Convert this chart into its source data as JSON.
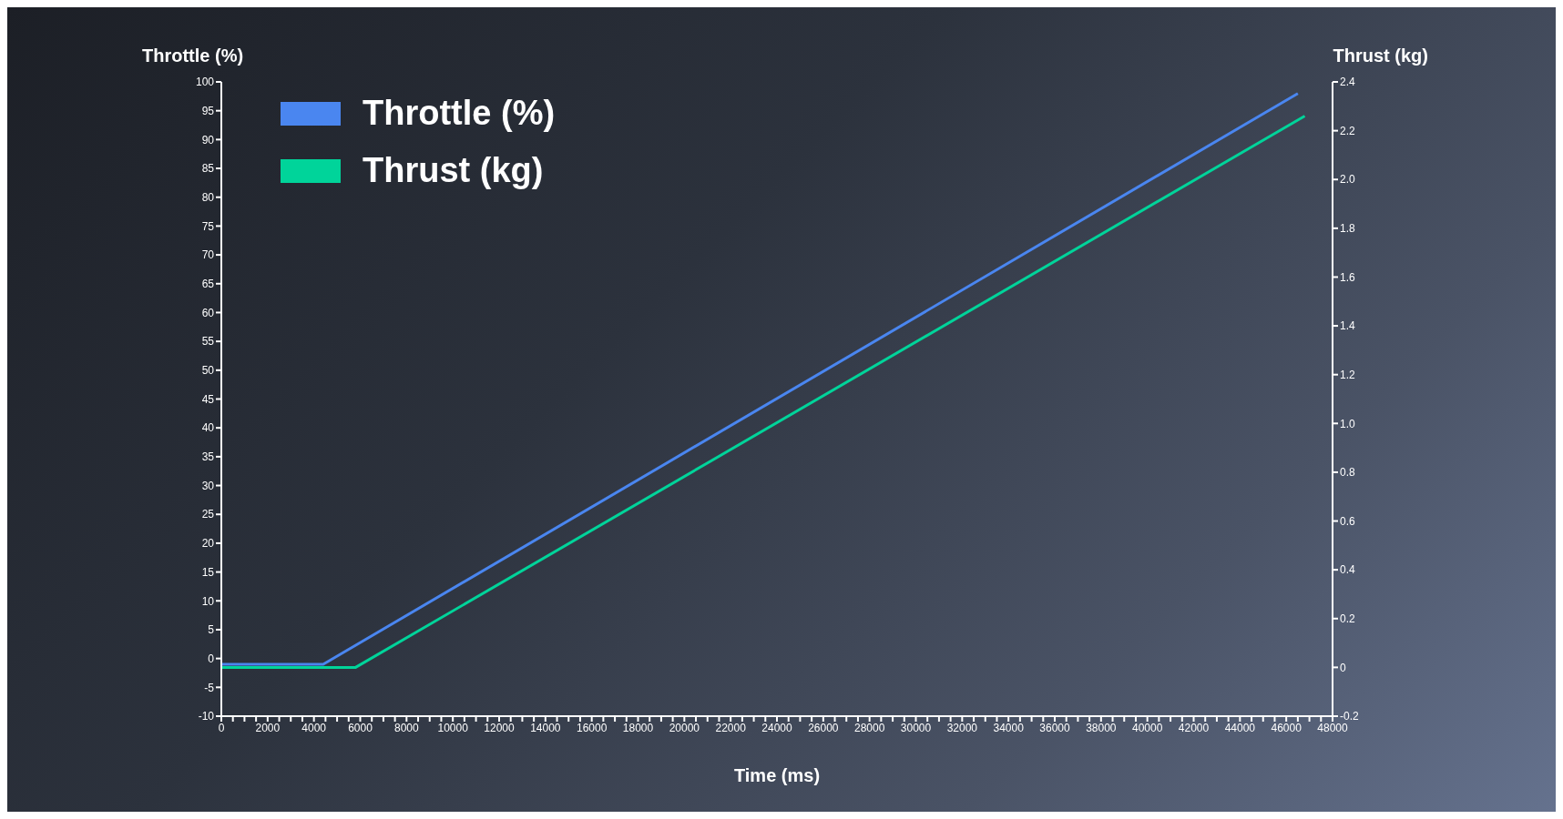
{
  "chart_data": {
    "type": "line",
    "xlabel": "Time (ms)",
    "ylabel": "Throttle (%)",
    "y2label": "Thrust (kg)",
    "series": [
      {
        "name": "Throttle (%)",
        "color": "#4a86f0",
        "x": [
          0,
          4400,
          46500
        ],
        "values": [
          -1,
          -1,
          98
        ]
      },
      {
        "name": "Thrust (kg)",
        "color": "#00d49a",
        "axis": "y2",
        "x": [
          0,
          5800,
          46800
        ],
        "values": [
          0,
          0,
          2.26
        ]
      }
    ],
    "xlim": [
      0,
      48000
    ],
    "xticks": [
      0,
      {
        "value": 500,
        "label": null
      },
      {
        "value": 1000,
        "label": null
      },
      {
        "value": 1500,
        "label": null
      },
      2000,
      {
        "value": 2500,
        "label": null
      },
      {
        "value": 3000,
        "label": null
      },
      {
        "value": 3500,
        "label": null
      },
      4000,
      {
        "value": 4500,
        "label": null
      },
      {
        "value": 5000,
        "label": null
      },
      {
        "value": 5500,
        "label": null
      },
      6000,
      {
        "value": 6500,
        "label": null
      },
      {
        "value": 7000,
        "label": null
      },
      {
        "value": 7500,
        "label": null
      },
      8000,
      {
        "value": 8500,
        "label": null
      },
      {
        "value": 9000,
        "label": null
      },
      {
        "value": 9500,
        "label": null
      },
      10000,
      {
        "value": 10500,
        "label": null
      },
      {
        "value": 11000,
        "label": null
      },
      {
        "value": 11500,
        "label": null
      },
      12000,
      {
        "value": 12500,
        "label": null
      },
      {
        "value": 13000,
        "label": null
      },
      {
        "value": 13500,
        "label": null
      },
      14000,
      {
        "value": 14500,
        "label": null
      },
      {
        "value": 15000,
        "label": null
      },
      {
        "value": 15500,
        "label": null
      },
      16000,
      {
        "value": 16500,
        "label": null
      },
      {
        "value": 17000,
        "label": null
      },
      {
        "value": 17500,
        "label": null
      },
      18000,
      {
        "value": 18500,
        "label": null
      },
      {
        "value": 19000,
        "label": null
      },
      {
        "value": 19500,
        "label": null
      },
      20000,
      {
        "value": 20500,
        "label": null
      },
      {
        "value": 21000,
        "label": null
      },
      {
        "value": 21500,
        "label": null
      },
      22000,
      {
        "value": 22500,
        "label": null
      },
      {
        "value": 23000,
        "label": null
      },
      {
        "value": 23500,
        "label": null
      },
      24000,
      {
        "value": 24500,
        "label": null
      },
      {
        "value": 25000,
        "label": null
      },
      {
        "value": 25500,
        "label": null
      },
      26000,
      {
        "value": 26500,
        "label": null
      },
      {
        "value": 27000,
        "label": null
      },
      {
        "value": 27500,
        "label": null
      },
      28000,
      {
        "value": 28500,
        "label": null
      },
      {
        "value": 29000,
        "label": null
      },
      {
        "value": 29500,
        "label": null
      },
      30000,
      {
        "value": 30500,
        "label": null
      },
      {
        "value": 31000,
        "label": null
      },
      {
        "value": 31500,
        "label": null
      },
      32000,
      {
        "value": 32500,
        "label": null
      },
      {
        "value": 33000,
        "label": null
      },
      {
        "value": 33500,
        "label": null
      },
      34000,
      {
        "value": 34500,
        "label": null
      },
      {
        "value": 35000,
        "label": null
      },
      {
        "value": 35500,
        "label": null
      },
      36000,
      {
        "value": 36500,
        "label": null
      },
      {
        "value": 37000,
        "label": null
      },
      {
        "value": 37500,
        "label": null
      },
      38000,
      {
        "value": 38500,
        "label": null
      },
      {
        "value": 39000,
        "label": null
      },
      {
        "value": 39500,
        "label": null
      },
      40000,
      {
        "value": 40500,
        "label": null
      },
      {
        "value": 41000,
        "label": null
      },
      {
        "value": 41500,
        "label": null
      },
      42000,
      {
        "value": 42500,
        "label": null
      },
      {
        "value": 43000,
        "label": null
      },
      {
        "value": 43500,
        "label": null
      },
      44000,
      {
        "value": 44500,
        "label": null
      },
      {
        "value": 45000,
        "label": null
      },
      {
        "value": 45500,
        "label": null
      },
      46000,
      {
        "value": 46500,
        "label": null
      },
      {
        "value": 47000,
        "label": null
      },
      {
        "value": 47500,
        "label": null
      },
      48000
    ],
    "ylim": [
      -10,
      100
    ],
    "yticks": [
      -10,
      -5,
      0,
      5,
      10,
      15,
      20,
      25,
      30,
      35,
      40,
      45,
      50,
      55,
      60,
      65,
      70,
      75,
      80,
      85,
      90,
      95,
      100
    ],
    "y2lim": [
      -0.2,
      2.4
    ],
    "y2ticks": [
      -0.2,
      0,
      0.2,
      0.4,
      0.6,
      0.8,
      {
        "value": 1,
        "label": "1.0"
      },
      1.2,
      1.4,
      1.6,
      1.8,
      {
        "value": 2,
        "label": "2.0"
      },
      2.2,
      2.4
    ],
    "grid": false,
    "legend": "top left",
    "marker": "none",
    "line_style": "solid"
  }
}
